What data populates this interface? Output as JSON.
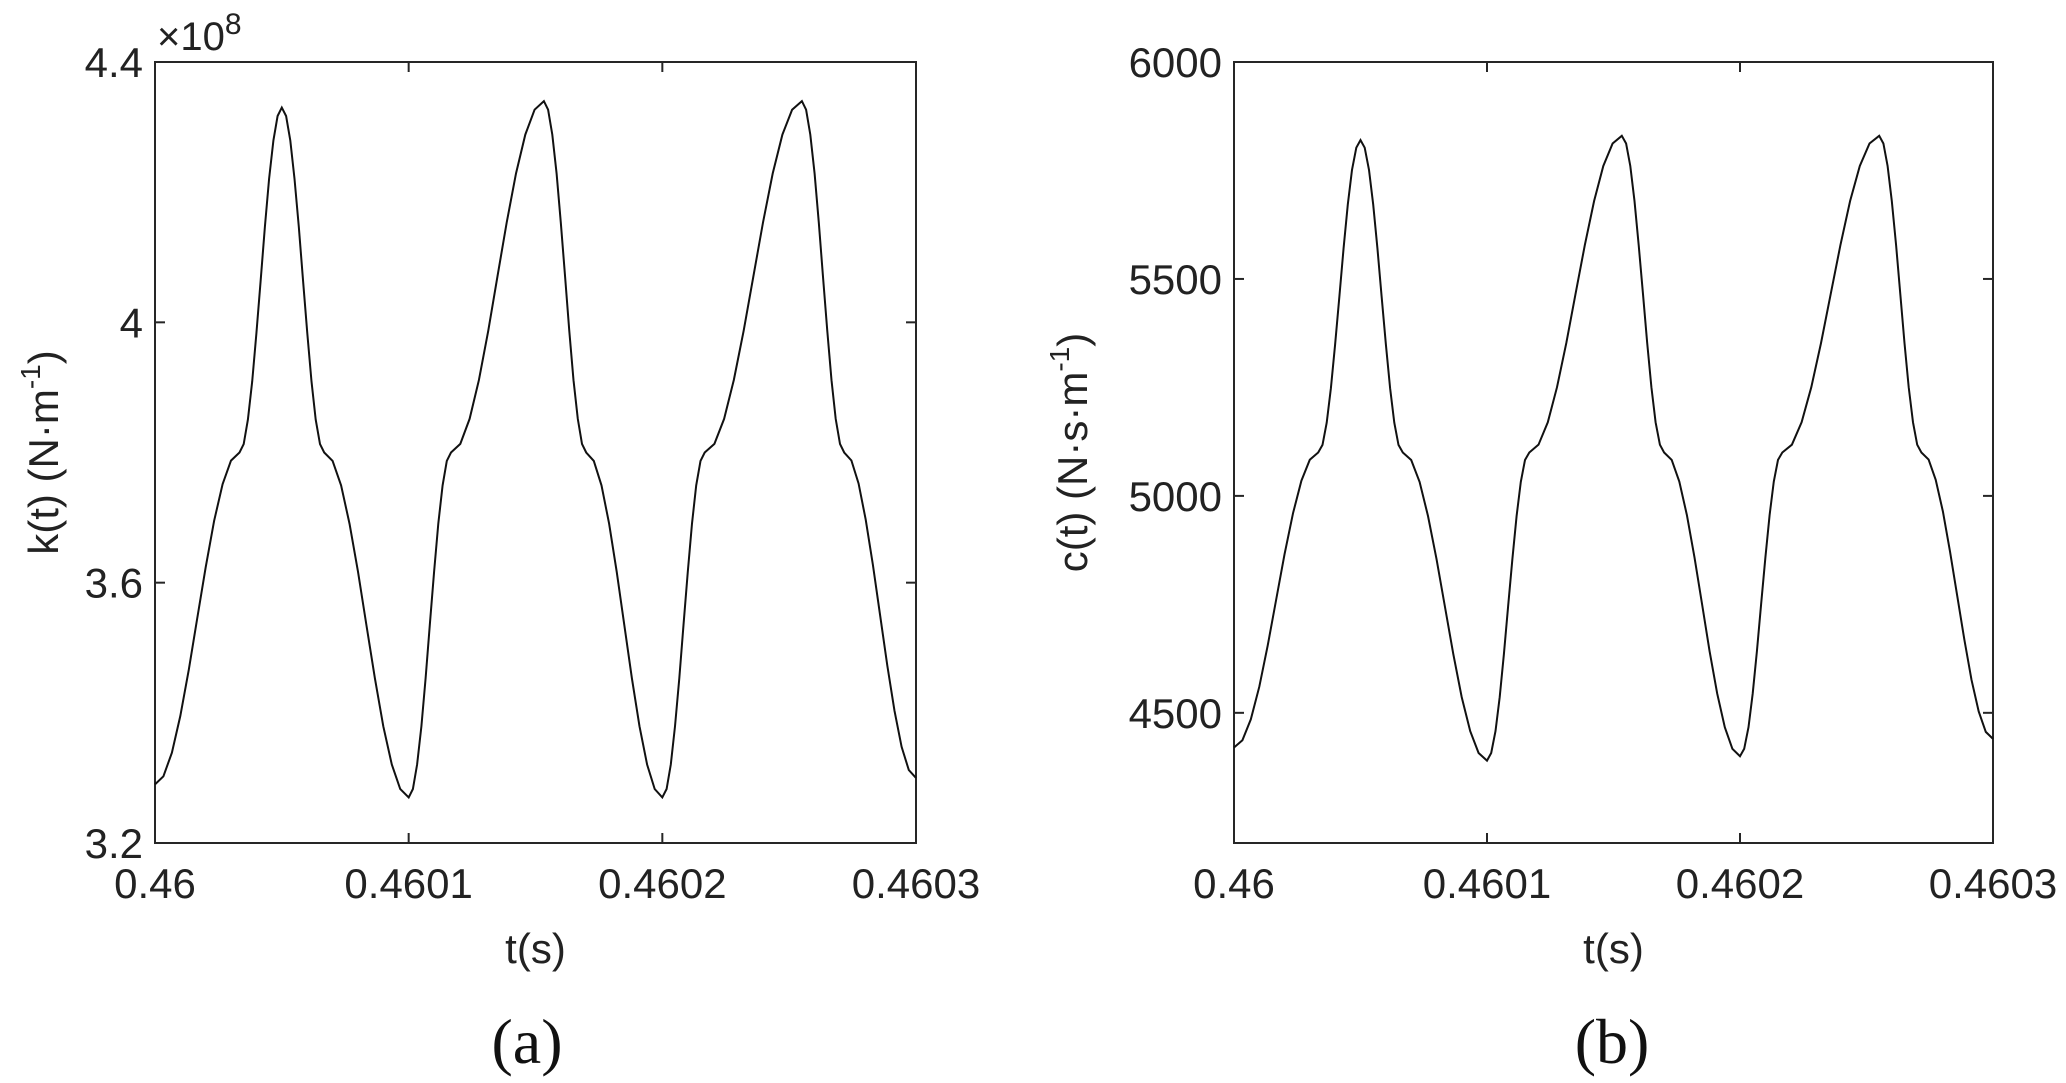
{
  "chart_data": [
    {
      "type": "line",
      "caption": "(a)",
      "xlabel": "t(s)",
      "ylabel": "k(t) (N·m",
      "ylabel_sup": "-1",
      "ylabel_close": ")",
      "y_exponent_prefix": "×10",
      "y_exponent": "8",
      "xlim": [
        0.46,
        0.4603
      ],
      "ylim": [
        3.2,
        4.4
      ],
      "x_ticks": [
        0.46,
        0.4601,
        0.4602,
        0.4603
      ],
      "x_tick_labels": [
        "0.46",
        "0.4601",
        "0.4602",
        "0.4603"
      ],
      "y_ticks": [
        3.2,
        3.6,
        4.0,
        4.4
      ],
      "y_tick_labels": [
        "3.2",
        "3.6",
        "4",
        "4.4"
      ],
      "series": [
        {
          "x": [
            0.46,
            0.4600333,
            0.46005,
            0.4600667,
            0.4601,
            0.4601167,
            0.4601533,
            0.46017,
            0.4602,
            0.4602167,
            0.460255,
            0.4602717,
            0.4603
          ],
          "y": [
            3.29,
            3.8,
            4.33,
            3.8,
            3.27,
            3.8,
            4.34,
            3.8,
            3.27,
            3.8,
            4.34,
            3.8,
            3.3
          ]
        }
      ]
    },
    {
      "type": "line",
      "caption": "(b)",
      "xlabel": "t(s)",
      "ylabel": "c(t) (N·s·m",
      "ylabel_sup": "-1",
      "ylabel_close": ")",
      "xlim": [
        0.46,
        0.4603
      ],
      "ylim": [
        4200,
        6000
      ],
      "x_ticks": [
        0.46,
        0.4601,
        0.4602,
        0.4603
      ],
      "x_tick_labels": [
        "0.46",
        "0.4601",
        "0.4602",
        "0.4603"
      ],
      "y_ticks": [
        4500,
        5000,
        5500,
        6000
      ],
      "y_tick_labels": [
        "4500",
        "5000",
        "5500",
        "6000"
      ],
      "series": [
        {
          "x": [
            0.46,
            0.4600333,
            0.46005,
            0.4600667,
            0.4601,
            0.4601167,
            0.4601533,
            0.46017,
            0.4602,
            0.4602167,
            0.460255,
            0.4602717,
            0.4603
          ],
          "y": [
            4420,
            5100,
            5820,
            5100,
            4390,
            5100,
            5830,
            5100,
            4400,
            5100,
            5830,
            5100,
            4440
          ]
        }
      ]
    }
  ]
}
